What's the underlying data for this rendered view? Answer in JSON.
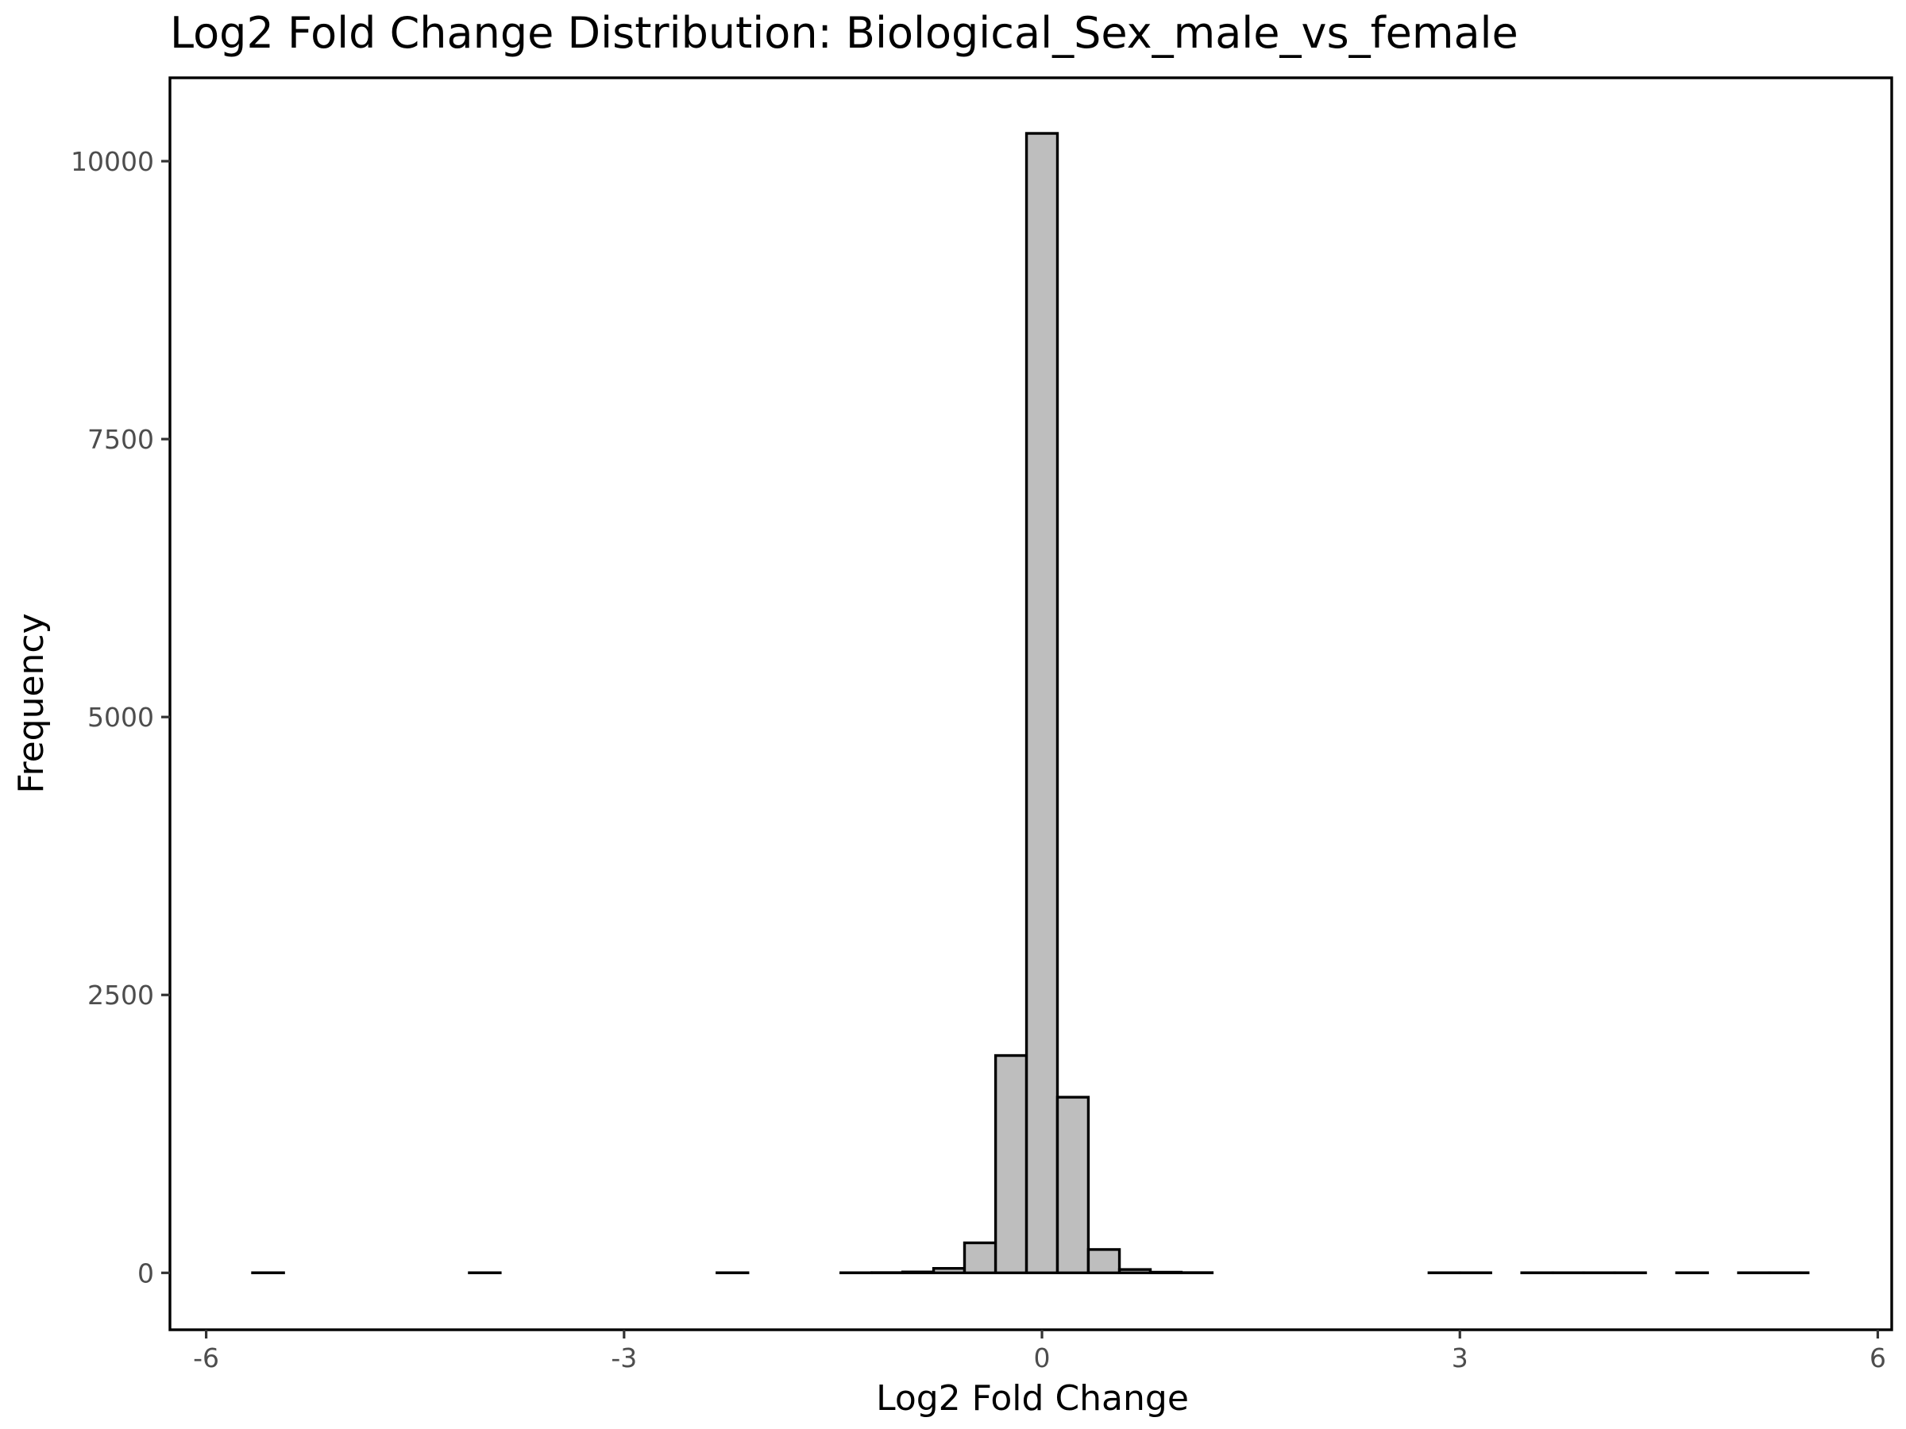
{
  "chart_data": {
    "type": "bar",
    "title": "Log2 Fold Change Distribution: Biological_Sex_male_vs_female",
    "xlabel": "Log2 Fold Change",
    "ylabel": "Frequency",
    "xlim": [
      -6.26,
      6.1
    ],
    "ylim": [
      -512,
      10750
    ],
    "x_ticks": [
      -6,
      -3,
      0,
      3,
      6
    ],
    "x_tick_labels": [
      "-6",
      "-3",
      "0",
      "3",
      "6"
    ],
    "y_ticks": [
      0,
      2500,
      5000,
      7500,
      10000
    ],
    "y_tick_labels": [
      "0",
      "2500",
      "5000",
      "7500",
      "10000"
    ],
    "grid": false,
    "bin_width": 0.2222,
    "bins": [
      {
        "x0": -5.667,
        "x1": -5.444,
        "count": 1
      },
      {
        "x0": -5.444,
        "x1": -5.222,
        "count": 0
      },
      {
        "x0": -5.222,
        "x1": -5.0,
        "count": 0
      },
      {
        "x0": -5.0,
        "x1": -4.778,
        "count": 0
      },
      {
        "x0": -4.778,
        "x1": -4.556,
        "count": 0
      },
      {
        "x0": -4.556,
        "x1": -4.333,
        "count": 0
      },
      {
        "x0": -4.333,
        "x1": -4.111,
        "count": 0
      },
      {
        "x0": -4.111,
        "x1": -3.889,
        "count": 1
      },
      {
        "x0": -3.889,
        "x1": -3.667,
        "count": 0
      },
      {
        "x0": -3.667,
        "x1": -3.444,
        "count": 0
      },
      {
        "x0": -3.444,
        "x1": -3.222,
        "count": 0
      },
      {
        "x0": -3.222,
        "x1": -3.0,
        "count": 0
      },
      {
        "x0": -3.0,
        "x1": -2.778,
        "count": 0
      },
      {
        "x0": -2.778,
        "x1": -2.556,
        "count": 0
      },
      {
        "x0": -2.556,
        "x1": -2.333,
        "count": 0
      },
      {
        "x0": -2.333,
        "x1": -2.111,
        "count": 1
      },
      {
        "x0": -2.111,
        "x1": -1.889,
        "count": 0
      },
      {
        "x0": -1.889,
        "x1": -1.667,
        "count": 0
      },
      {
        "x0": -1.667,
        "x1": -1.444,
        "count": 0
      },
      {
        "x0": -1.444,
        "x1": -1.222,
        "count": 1
      },
      {
        "x0": -1.222,
        "x1": -1.0,
        "count": 2
      },
      {
        "x0": -1.0,
        "x1": -0.778,
        "count": 8
      },
      {
        "x0": -0.778,
        "x1": -0.556,
        "count": 40
      },
      {
        "x0": -0.556,
        "x1": -0.333,
        "count": 270
      },
      {
        "x0": -0.333,
        "x1": -0.111,
        "count": 1955
      },
      {
        "x0": -0.111,
        "x1": 0.111,
        "count": 10250
      },
      {
        "x0": 0.111,
        "x1": 0.333,
        "count": 1580
      },
      {
        "x0": 0.333,
        "x1": 0.556,
        "count": 210
      },
      {
        "x0": 0.556,
        "x1": 0.778,
        "count": 30
      },
      {
        "x0": 0.778,
        "x1": 1.0,
        "count": 6
      },
      {
        "x0": 1.0,
        "x1": 1.222,
        "count": 2
      },
      {
        "x0": 1.222,
        "x1": 1.444,
        "count": 0
      },
      {
        "x0": 1.444,
        "x1": 1.667,
        "count": 0
      },
      {
        "x0": 1.667,
        "x1": 1.889,
        "count": 0
      },
      {
        "x0": 1.889,
        "x1": 2.111,
        "count": 0
      },
      {
        "x0": 2.111,
        "x1": 2.333,
        "count": 0
      },
      {
        "x0": 2.333,
        "x1": 2.556,
        "count": 0
      },
      {
        "x0": 2.556,
        "x1": 2.778,
        "count": 0
      },
      {
        "x0": 2.778,
        "x1": 3.0,
        "count": 1
      },
      {
        "x0": 3.0,
        "x1": 3.222,
        "count": 1
      },
      {
        "x0": 3.222,
        "x1": 3.444,
        "count": 0
      },
      {
        "x0": 3.444,
        "x1": 3.667,
        "count": 1
      },
      {
        "x0": 3.667,
        "x1": 3.889,
        "count": 1
      },
      {
        "x0": 3.889,
        "x1": 4.111,
        "count": 1
      },
      {
        "x0": 4.111,
        "x1": 4.333,
        "count": 1
      },
      {
        "x0": 4.333,
        "x1": 4.556,
        "count": 0
      },
      {
        "x0": 4.556,
        "x1": 4.778,
        "count": 1
      },
      {
        "x0": 4.778,
        "x1": 5.0,
        "count": 0
      },
      {
        "x0": 5.0,
        "x1": 5.222,
        "count": 1
      },
      {
        "x0": 5.222,
        "x1": 5.444,
        "count": 1
      },
      {
        "x0": 5.444,
        "x1": 5.5,
        "count": 1
      }
    ],
    "colors": {
      "bar_fill": "#bebebe",
      "bar_stroke": "#000000",
      "background": "#ffffff"
    }
  }
}
